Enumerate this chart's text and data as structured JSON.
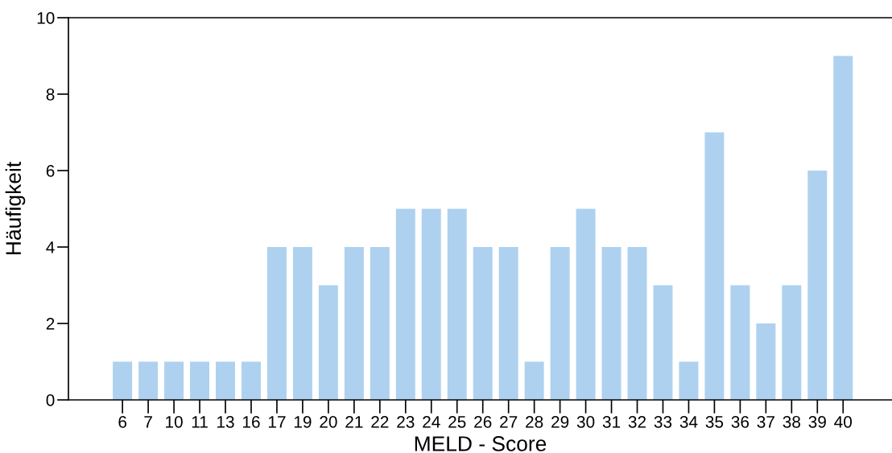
{
  "chart_data": {
    "type": "bar",
    "xlabel": "MELD - Score",
    "ylabel": "Häufigkeit",
    "categories": [
      "6",
      "7",
      "10",
      "11",
      "13",
      "16",
      "17",
      "19",
      "20",
      "21",
      "22",
      "23",
      "24",
      "25",
      "26",
      "27",
      "28",
      "29",
      "30",
      "31",
      "32",
      "33",
      "34",
      "35",
      "36",
      "37",
      "38",
      "39",
      "40"
    ],
    "values": [
      1,
      1,
      1,
      1,
      1,
      1,
      4,
      4,
      3,
      4,
      4,
      5,
      5,
      5,
      4,
      4,
      1,
      4,
      5,
      4,
      4,
      3,
      1,
      7,
      3,
      2,
      3,
      6,
      9
    ],
    "color": "#aed1ef",
    "ylim": [
      0,
      10
    ],
    "yticks": [
      0,
      2,
      4,
      6,
      8,
      10
    ],
    "grid": false,
    "legend": false
  }
}
